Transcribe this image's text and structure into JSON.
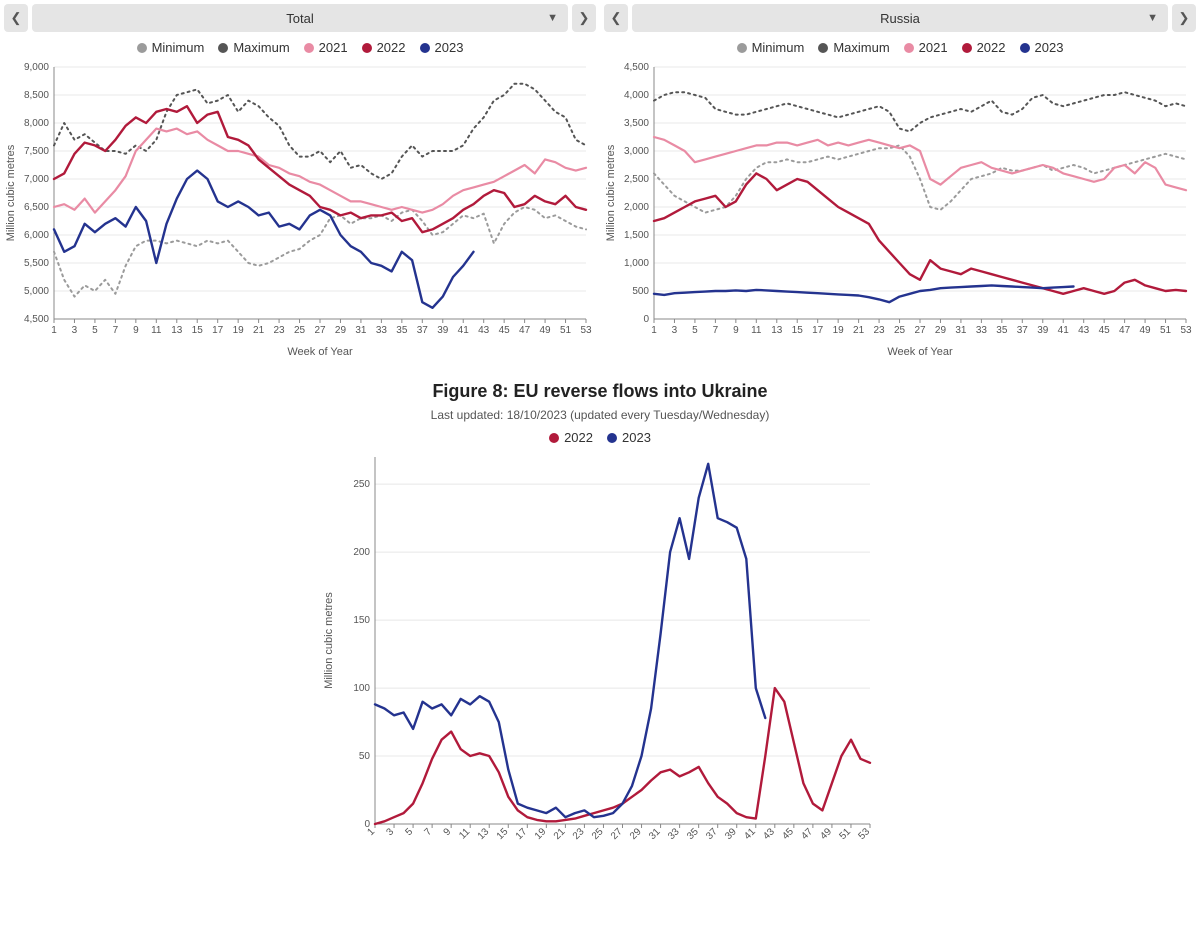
{
  "colors": {
    "minimum": "#9b9b9b",
    "maximum": "#555555",
    "y2021": "#e98ba4",
    "y2022": "#b11a3b",
    "y2023": "#24338f",
    "grid": "#e8e8e8",
    "axis": "#888888",
    "bg": "#ffffff",
    "dropdown": "#e5e5e5"
  },
  "legend_top": [
    {
      "label": "Minimum",
      "key": "minimum",
      "dashed": true
    },
    {
      "label": "Maximum",
      "key": "maximum",
      "dashed": true
    },
    {
      "label": "2021",
      "key": "y2021",
      "dashed": false
    },
    {
      "label": "2022",
      "key": "y2022",
      "dashed": false
    },
    {
      "label": "2023",
      "key": "y2023",
      "dashed": false
    }
  ],
  "top_charts": {
    "xlabel": "Week of Year",
    "ylabel": "Million cubic metres",
    "x_ticks": [
      1,
      3,
      5,
      7,
      9,
      11,
      13,
      15,
      17,
      19,
      21,
      23,
      25,
      27,
      29,
      31,
      33,
      35,
      37,
      39,
      41,
      43,
      45,
      47,
      49,
      51,
      53
    ],
    "left": {
      "dropdown": "Total",
      "ylim": [
        4500,
        9000
      ],
      "ytick_step": 500,
      "series": {
        "minimum": [
          5700,
          5200,
          4900,
          5100,
          5000,
          5200,
          4950,
          5450,
          5800,
          5900,
          5900,
          5850,
          5900,
          5850,
          5800,
          5900,
          5850,
          5900,
          5700,
          5500,
          5450,
          5500,
          5600,
          5700,
          5750,
          5900,
          6000,
          6300,
          6350,
          6200,
          6300,
          6300,
          6350,
          6250,
          6400,
          6450,
          6250,
          6000,
          6050,
          6200,
          6350,
          6300,
          6380,
          5850,
          6200,
          6400,
          6500,
          6450,
          6300,
          6350,
          6250,
          6150,
          6100
        ],
        "maximum": [
          7600,
          8000,
          7700,
          7800,
          7650,
          7500,
          7500,
          7450,
          7600,
          7500,
          7700,
          8200,
          8500,
          8550,
          8600,
          8350,
          8400,
          8500,
          8200,
          8400,
          8300,
          8100,
          7950,
          7600,
          7400,
          7400,
          7500,
          7300,
          7500,
          7200,
          7250,
          7100,
          7000,
          7100,
          7400,
          7600,
          7400,
          7500,
          7500,
          7500,
          7600,
          7900,
          8100,
          8400,
          8500,
          8700,
          8700,
          8600,
          8400,
          8200,
          8100,
          7700,
          7600
        ],
        "y2021": [
          6500,
          6550,
          6450,
          6650,
          6400,
          6600,
          6800,
          7050,
          7500,
          7700,
          7900,
          7850,
          7900,
          7800,
          7850,
          7700,
          7600,
          7500,
          7500,
          7450,
          7400,
          7250,
          7200,
          7100,
          7050,
          6950,
          6900,
          6800,
          6700,
          6600,
          6600,
          6550,
          6500,
          6450,
          6500,
          6450,
          6400,
          6450,
          6550,
          6700,
          6800,
          6850,
          6900,
          6950,
          7050,
          7150,
          7250,
          7100,
          7350,
          7300,
          7200,
          7150,
          7200
        ],
        "y2022": [
          7000,
          7100,
          7450,
          7650,
          7600,
          7500,
          7700,
          7950,
          8100,
          8000,
          8200,
          8250,
          8200,
          8300,
          8000,
          8150,
          8200,
          7750,
          7700,
          7600,
          7350,
          7200,
          7050,
          6900,
          6800,
          6700,
          6500,
          6450,
          6350,
          6400,
          6300,
          6350,
          6350,
          6400,
          6250,
          6300,
          6050,
          6100,
          6200,
          6300,
          6450,
          6550,
          6700,
          6800,
          6750,
          6500,
          6550,
          6700,
          6600,
          6550,
          6700,
          6500,
          6450
        ],
        "y2023": [
          6100,
          5700,
          5800,
          6200,
          6050,
          6200,
          6300,
          6150,
          6500,
          6250,
          5500,
          6200,
          6650,
          7000,
          7150,
          7000,
          6600,
          6500,
          6600,
          6500,
          6350,
          6400,
          6150,
          6200,
          6100,
          6350,
          6450,
          6350,
          6000,
          5800,
          5700,
          5500,
          5450,
          5350,
          5700,
          5550,
          4800,
          4700,
          4900,
          5250,
          5450,
          5700
        ]
      }
    },
    "right": {
      "dropdown": "Russia",
      "ylim": [
        0,
        4500
      ],
      "ytick_step": 500,
      "series": {
        "minimum": [
          2600,
          2400,
          2200,
          2100,
          2000,
          1900,
          1950,
          2000,
          2200,
          2500,
          2700,
          2800,
          2800,
          2850,
          2800,
          2800,
          2850,
          2900,
          2850,
          2900,
          2950,
          3000,
          3050,
          3050,
          3100,
          2900,
          2500,
          2000,
          1950,
          2100,
          2300,
          2500,
          2550,
          2600,
          2700,
          2650,
          2650,
          2700,
          2750,
          2650,
          2700,
          2750,
          2700,
          2600,
          2650,
          2700,
          2750,
          2800,
          2850,
          2900,
          2950,
          2900,
          2850
        ],
        "maximum": [
          3900,
          4000,
          4050,
          4050,
          4000,
          3950,
          3750,
          3700,
          3650,
          3650,
          3700,
          3750,
          3800,
          3850,
          3800,
          3750,
          3700,
          3650,
          3600,
          3650,
          3700,
          3750,
          3800,
          3700,
          3400,
          3350,
          3500,
          3600,
          3650,
          3700,
          3750,
          3700,
          3800,
          3900,
          3700,
          3650,
          3750,
          3950,
          4000,
          3850,
          3800,
          3850,
          3900,
          3950,
          4000,
          4000,
          4050,
          4000,
          3950,
          3900,
          3800,
          3850,
          3800
        ],
        "y2021": [
          3250,
          3200,
          3100,
          3000,
          2800,
          2850,
          2900,
          2950,
          3000,
          3050,
          3100,
          3100,
          3150,
          3150,
          3100,
          3150,
          3200,
          3100,
          3150,
          3100,
          3150,
          3200,
          3150,
          3100,
          3050,
          3100,
          3000,
          2500,
          2400,
          2550,
          2700,
          2750,
          2800,
          2700,
          2650,
          2600,
          2650,
          2700,
          2750,
          2700,
          2600,
          2550,
          2500,
          2450,
          2500,
          2700,
          2750,
          2600,
          2800,
          2700,
          2400,
          2350,
          2300
        ],
        "y2022": [
          1750,
          1800,
          1900,
          2000,
          2100,
          2150,
          2200,
          2000,
          2100,
          2400,
          2600,
          2500,
          2300,
          2400,
          2500,
          2450,
          2300,
          2150,
          2000,
          1900,
          1800,
          1700,
          1400,
          1200,
          1000,
          800,
          700,
          1050,
          900,
          850,
          800,
          900,
          850,
          800,
          750,
          700,
          650,
          600,
          550,
          500,
          450,
          500,
          550,
          500,
          450,
          500,
          650,
          700,
          600,
          550,
          500,
          520,
          500
        ],
        "y2023": [
          450,
          430,
          460,
          470,
          480,
          490,
          500,
          500,
          510,
          500,
          520,
          510,
          500,
          490,
          480,
          470,
          460,
          450,
          440,
          430,
          420,
          390,
          350,
          300,
          400,
          450,
          500,
          520,
          550,
          560,
          570,
          580,
          590,
          600,
          590,
          580,
          570,
          560,
          550,
          560,
          570,
          580
        ]
      }
    }
  },
  "bottom_chart": {
    "title": "Figure 8: EU reverse flows into Ukraine",
    "subtitle": "Last updated: 18/10/2023 (updated every Tuesday/Wednesday)",
    "ylabel": "Million cubic metres",
    "ylim": [
      0,
      270
    ],
    "yticks": [
      0,
      50,
      100,
      150,
      200,
      250
    ],
    "x_ticks": [
      1,
      3,
      5,
      7,
      9,
      11,
      13,
      15,
      17,
      19,
      21,
      23,
      25,
      27,
      29,
      31,
      33,
      35,
      37,
      39,
      41,
      43,
      45,
      47,
      49,
      51,
      53
    ],
    "legend": [
      {
        "label": "2022",
        "key": "y2022"
      },
      {
        "label": "2023",
        "key": "y2023"
      }
    ],
    "series": {
      "y2022": [
        0,
        2,
        5,
        8,
        15,
        30,
        48,
        62,
        68,
        55,
        50,
        52,
        50,
        38,
        20,
        10,
        5,
        3,
        2,
        2,
        3,
        4,
        6,
        8,
        10,
        12,
        15,
        20,
        25,
        32,
        38,
        40,
        35,
        38,
        42,
        30,
        20,
        15,
        8,
        5,
        4,
        50,
        100,
        90,
        60,
        30,
        15,
        10,
        30,
        50,
        62,
        48,
        45
      ],
      "y2023": [
        88,
        85,
        80,
        82,
        70,
        90,
        85,
        88,
        80,
        92,
        88,
        94,
        90,
        75,
        40,
        15,
        12,
        10,
        8,
        12,
        5,
        8,
        10,
        5,
        6,
        8,
        15,
        28,
        50,
        85,
        140,
        200,
        225,
        195,
        240,
        265,
        225,
        222,
        218,
        195,
        100,
        78
      ]
    }
  }
}
